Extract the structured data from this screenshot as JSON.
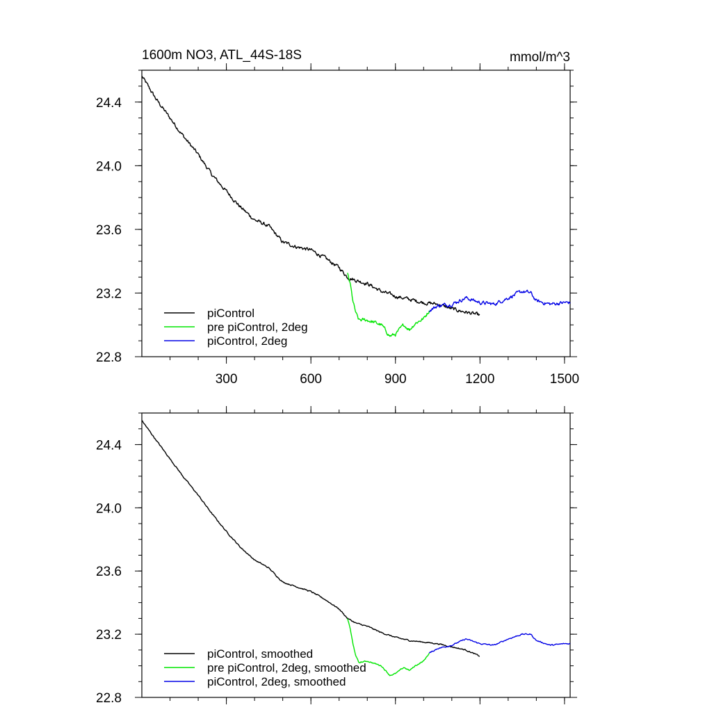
{
  "chart_data": [
    {
      "type": "line",
      "title": "1600m NO3, ATL_44S-18S",
      "units": "mmol/m^3",
      "xlim": [
        0,
        1520
      ],
      "ylim": [
        22.8,
        24.6
      ],
      "xticks": [
        300,
        600,
        900,
        1200,
        1500
      ],
      "xtick_labels": [
        "300",
        "600",
        "900",
        "1200",
        "1500"
      ],
      "yticks": [
        22.8,
        23.2,
        23.6,
        24.0,
        24.4
      ],
      "ytick_labels": [
        "22.8",
        "23.2",
        "23.6",
        "24.0",
        "24.4"
      ],
      "legend_position": "bottom-left",
      "series": [
        {
          "name": "piControl",
          "color": "#000000",
          "x": [
            1,
            50,
            100,
            150,
            200,
            250,
            300,
            350,
            400,
            450,
            500,
            550,
            600,
            650,
            700,
            730,
            760,
            800,
            850,
            900,
            950,
            1000,
            1050,
            1100,
            1150,
            1200
          ],
          "y": [
            24.56,
            24.42,
            24.3,
            24.18,
            24.07,
            23.94,
            23.84,
            23.74,
            23.66,
            23.62,
            23.52,
            23.49,
            23.47,
            23.42,
            23.36,
            23.3,
            23.28,
            23.26,
            23.21,
            23.18,
            23.16,
            23.14,
            23.13,
            23.1,
            23.08,
            23.06
          ]
        },
        {
          "name": "pre piControl, 2deg",
          "color": "#00e600",
          "x": [
            730,
            740,
            750,
            760,
            770,
            800,
            850,
            880,
            900,
            930,
            950,
            970,
            1000,
            1020
          ],
          "y": [
            23.32,
            23.25,
            23.14,
            23.07,
            23.03,
            23.03,
            23.0,
            22.93,
            22.94,
            23.0,
            22.97,
            23.01,
            23.04,
            23.09
          ]
        },
        {
          "name": "piControl, 2deg",
          "color": "#0000e6",
          "x": [
            1020,
            1050,
            1100,
            1150,
            1200,
            1250,
            1300,
            1350,
            1380,
            1400,
            1450,
            1500,
            1520
          ],
          "y": [
            23.09,
            23.12,
            23.13,
            23.17,
            23.14,
            23.13,
            23.17,
            23.21,
            23.2,
            23.15,
            23.13,
            23.14,
            23.14
          ]
        }
      ]
    },
    {
      "type": "line",
      "xlim": [
        0,
        1520
      ],
      "ylim": [
        22.8,
        24.6
      ],
      "xticks": [
        300,
        600,
        900,
        1200,
        1500
      ],
      "yticks": [
        22.8,
        23.2,
        23.6,
        24.0,
        24.4
      ],
      "ytick_labels": [
        "22.8",
        "23.2",
        "23.6",
        "24.0",
        "24.4"
      ],
      "legend_position": "bottom-left",
      "series": [
        {
          "name": "piControl, smoothed",
          "color": "#000000",
          "x": [
            1,
            50,
            100,
            150,
            200,
            250,
            300,
            350,
            400,
            450,
            500,
            550,
            600,
            650,
            700,
            730,
            760,
            800,
            850,
            900,
            950,
            1000,
            1050,
            1100,
            1150,
            1200
          ],
          "y": [
            24.55,
            24.43,
            24.31,
            24.19,
            24.08,
            23.96,
            23.85,
            23.75,
            23.67,
            23.62,
            23.53,
            23.5,
            23.47,
            23.42,
            23.36,
            23.3,
            23.27,
            23.25,
            23.21,
            23.18,
            23.16,
            23.15,
            23.14,
            23.12,
            23.1,
            23.06
          ]
        },
        {
          "name": "pre piControl, 2deg, smoothed",
          "color": "#00e600",
          "x": [
            730,
            740,
            750,
            760,
            770,
            800,
            850,
            880,
            900,
            930,
            950,
            970,
            1000,
            1020
          ],
          "y": [
            23.3,
            23.23,
            23.13,
            23.06,
            23.02,
            23.03,
            23.0,
            22.94,
            22.95,
            22.99,
            22.97,
            23.0,
            23.03,
            23.08
          ]
        },
        {
          "name": "piControl, 2deg, smoothed",
          "color": "#0000e6",
          "x": [
            1020,
            1050,
            1100,
            1150,
            1200,
            1250,
            1300,
            1350,
            1380,
            1400,
            1450,
            1500,
            1520
          ],
          "y": [
            23.08,
            23.11,
            23.13,
            23.17,
            23.14,
            23.13,
            23.17,
            23.2,
            23.2,
            23.16,
            23.13,
            23.14,
            23.14
          ]
        }
      ]
    }
  ]
}
